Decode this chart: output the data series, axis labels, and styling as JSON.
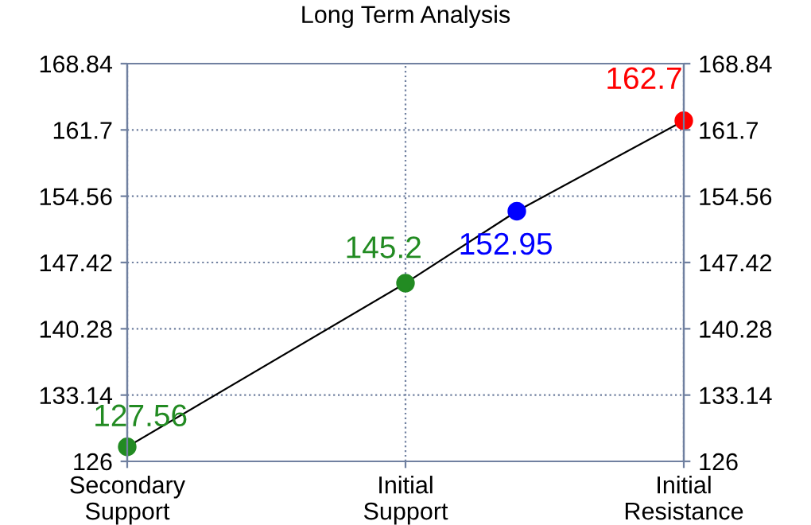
{
  "chart_data": {
    "type": "line",
    "title": "Long Term Analysis",
    "categories": [
      "Secondary\nSupport",
      null,
      null,
      null,
      null,
      "Initial\nSupport",
      null,
      null,
      null,
      null,
      "Initial\nResistance"
    ],
    "series": [
      {
        "color": "#000000",
        "colors": [
          "#228b22",
          null,
          null,
          null,
          null,
          "#228b22",
          null,
          "#0000ff",
          null,
          null,
          "#ff0000"
        ],
        "values": [
          127.56,
          null,
          null,
          null,
          null,
          145.2,
          null,
          152.95,
          null,
          null,
          162.7
        ]
      }
    ],
    "ylim": [
      126,
      168.84
    ],
    "yticks": [
      126,
      133.14,
      140.28,
      147.42,
      154.56,
      161.7,
      168.84
    ],
    "y2lim": [
      126,
      168.84
    ],
    "y2ticks": [
      126,
      133.14,
      140.28,
      147.42,
      154.56,
      161.7,
      168.84
    ],
    "grid": true,
    "marker": "circle",
    "line_style": "solid",
    "data_labels": true
  }
}
